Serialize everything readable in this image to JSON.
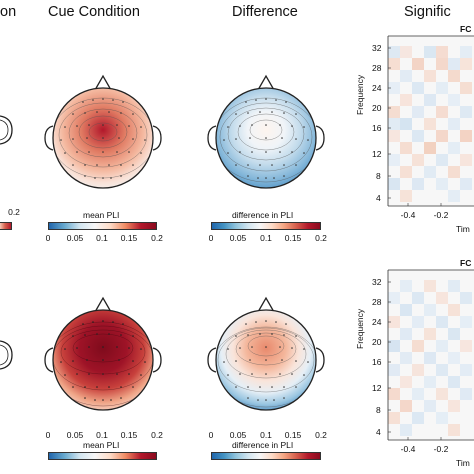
{
  "headers": {
    "col1_fragment": "on",
    "cue_condition": "Cue Condition",
    "difference": "Difference",
    "significance_fragment": "Signific"
  },
  "colorbars": {
    "pli_label": "mean PLI",
    "diff_label": "difference in PLI",
    "ticks": [
      "0",
      "0.05",
      "0.1",
      "0.15",
      "0.2"
    ],
    "left_fragment_tick": "0.2"
  },
  "time_freq": {
    "top_title_fragment": "FC",
    "bottom_title_fragment": "FC",
    "ylabel": "Frequency",
    "xlabel_fragment": "Tim",
    "yticks": [
      "32",
      "28",
      "24",
      "20",
      "16",
      "12",
      "8",
      "4"
    ],
    "xticks": [
      "-0.4",
      "-0.2"
    ]
  },
  "colors": {
    "red_dark": "#8b0a1e",
    "red": "#d6604d",
    "white": "#f7f7f7",
    "blue": "#4393c3",
    "blue_dark": "#2166ac"
  }
}
